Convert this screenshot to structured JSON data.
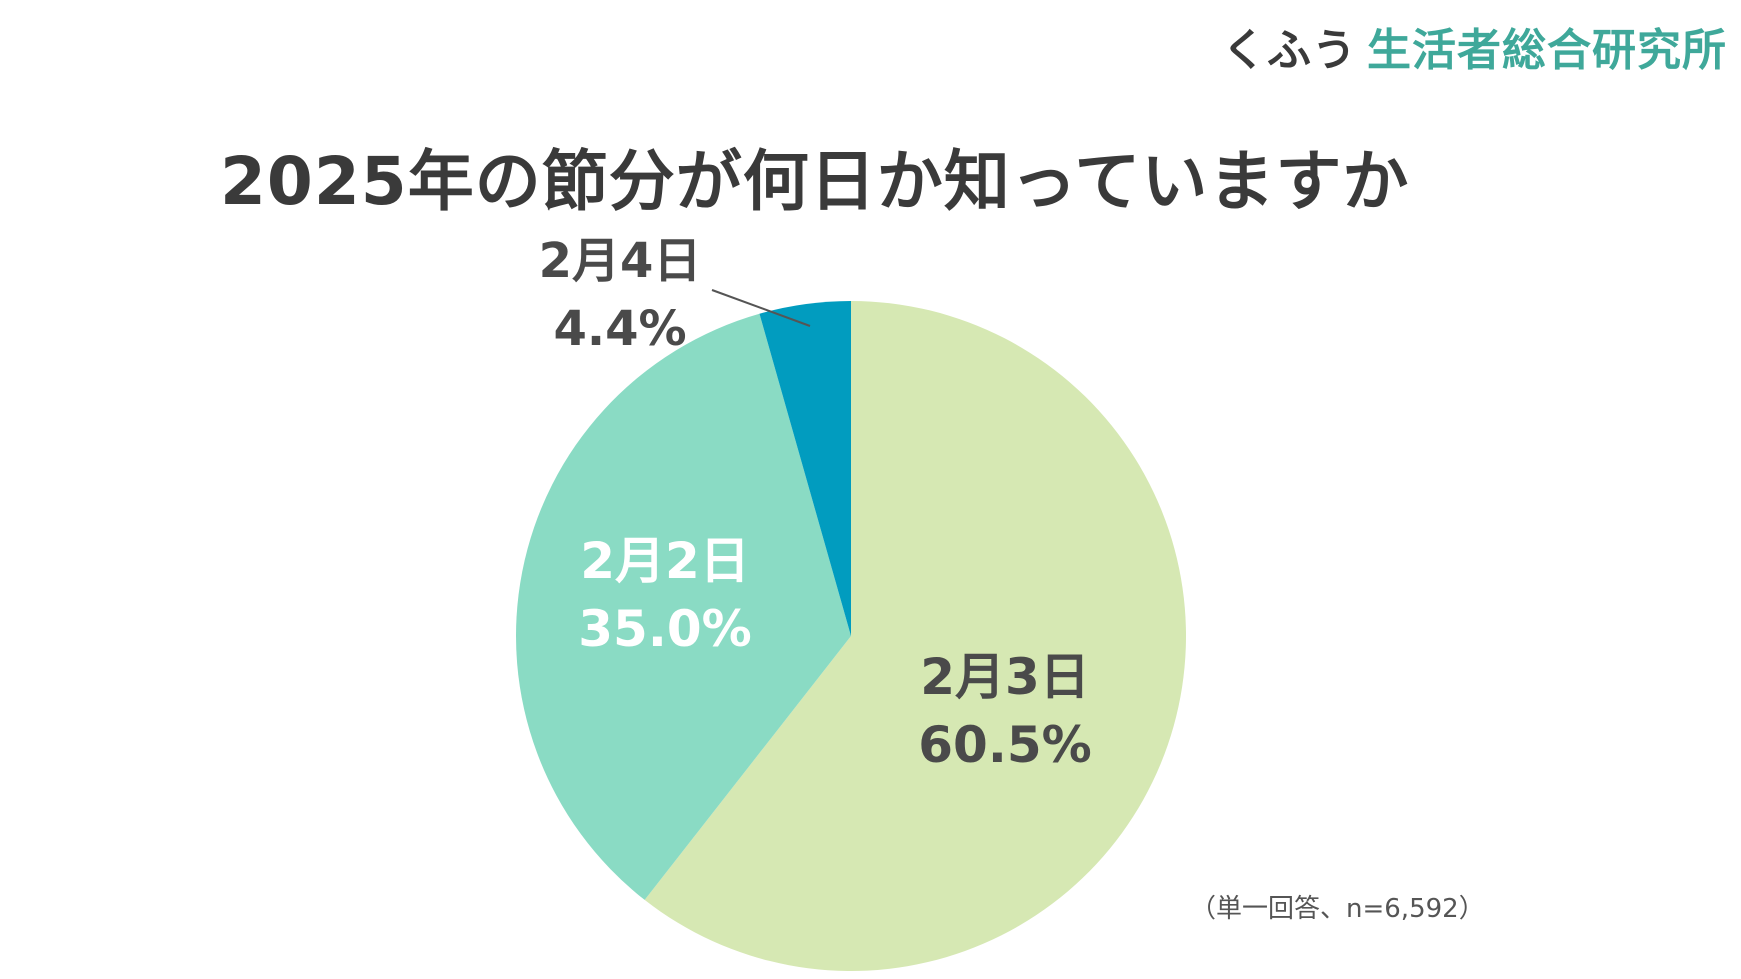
{
  "logo": {
    "kana": "くふう",
    "org": "生活者総合研究所"
  },
  "note": "（単一回答、n=6,592）",
  "colors": {
    "feb3": "#d6e8b3",
    "feb2": "#8adbc4",
    "feb4": "#019cbf",
    "text_dark": "#4a4a4a",
    "text_light": "#ffffff"
  },
  "chart_data": {
    "type": "pie",
    "title": "2025年の節分が何日か知っていますか",
    "start_angle_deg": 0,
    "direction": "clockwise",
    "slices": [
      {
        "label": "2月3日",
        "value": 60.5,
        "display": "60.5%",
        "color": "#d6e8b3",
        "label_color": "#4a4a4a"
      },
      {
        "label": "2月2日",
        "value": 35.0,
        "display": "35.0%",
        "color": "#8adbc4",
        "label_color": "#ffffff"
      },
      {
        "label": "2月4日",
        "value": 4.4,
        "display": "4.4%",
        "color": "#019cbf",
        "label_color": "#4a4a4a",
        "leader_line": true
      }
    ]
  }
}
